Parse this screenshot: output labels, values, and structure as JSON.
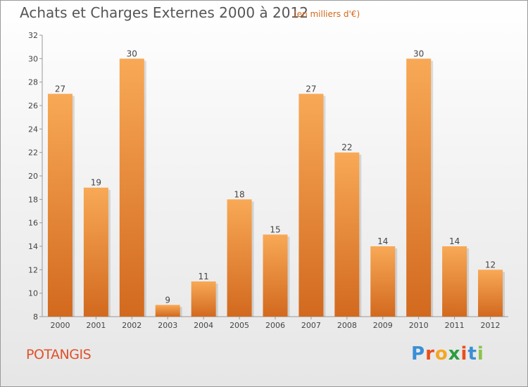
{
  "title": "Achats et Charges Externes 2000 à 2012",
  "subtitle": "(en milliers d'€)",
  "commune": "POTANGIS",
  "brand": {
    "letters": [
      "P",
      "r",
      "o",
      "x",
      "i",
      "t",
      "i"
    ],
    "colors": [
      "#3a8fd6",
      "#e94e1b",
      "#f5a623",
      "#2a9d3f",
      "#e94e1b",
      "#3a8fd6",
      "#8bc34a"
    ]
  },
  "colors": {
    "bar_light": "#f8a956",
    "bar_dark": "#d2691e",
    "axis": "#999999",
    "text": "#444444"
  },
  "chart_data": {
    "type": "bar",
    "categories": [
      "2000",
      "2001",
      "2002",
      "2003",
      "2004",
      "2005",
      "2006",
      "2007",
      "2008",
      "2009",
      "2010",
      "2011",
      "2012"
    ],
    "values": [
      27,
      19,
      30,
      9,
      11,
      18,
      15,
      27,
      22,
      14,
      30,
      14,
      12
    ],
    "title": "Achats et Charges Externes 2000 à 2012",
    "xlabel": "",
    "ylabel": "",
    "ylim": [
      8,
      32
    ],
    "yticks": [
      8,
      10,
      12,
      14,
      16,
      18,
      20,
      22,
      24,
      26,
      28,
      30,
      32
    ],
    "grid": false,
    "legend": "none"
  }
}
